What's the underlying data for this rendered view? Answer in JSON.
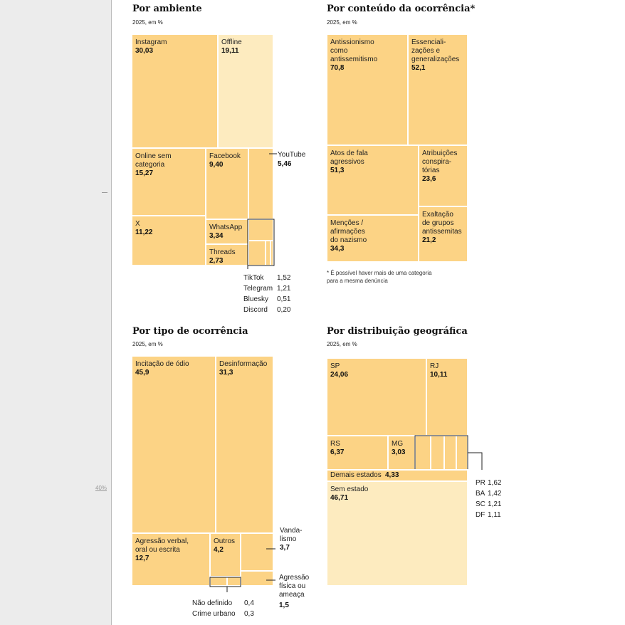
{
  "colors": {
    "main": "#fcd385",
    "light": "#fdebbf",
    "sidebar": "#ececec"
  },
  "sidebar": {
    "pct": "40%"
  },
  "chart_data": [
    {
      "type": "treemap",
      "title": "Por ambiente",
      "subtitle": "2025, em %",
      "items": [
        {
          "label": "Instagram",
          "value": "30,03",
          "lines": [
            "Instagram"
          ]
        },
        {
          "label": "Offline",
          "value": "19,11",
          "lines": [
            "Offline"
          ],
          "shade": "light"
        },
        {
          "label": "Online sem categoria",
          "value": "15,27",
          "lines": [
            "Online sem",
            "categoria"
          ]
        },
        {
          "label": "Facebook",
          "value": "9,40",
          "lines": [
            "Facebook"
          ]
        },
        {
          "label": "YouTube",
          "value": "5,46",
          "lines": [
            "YouTube"
          ]
        },
        {
          "label": "X",
          "value": "11,22",
          "lines": [
            "X"
          ]
        },
        {
          "label": "WhatsApp",
          "value": "3,34",
          "lines": [
            "WhatsApp"
          ]
        },
        {
          "label": "Threads",
          "value": "2,73",
          "lines": [
            "Threads"
          ]
        }
      ],
      "small_items": [
        {
          "label": "TikTok",
          "value": "1,52"
        },
        {
          "label": "Telegram",
          "value": "1,21"
        },
        {
          "label": "Bluesky",
          "value": "0,51"
        },
        {
          "label": "Discord",
          "value": "0,20"
        }
      ]
    },
    {
      "type": "treemap",
      "title": "Por conteúdo da ocorrência*",
      "subtitle": "2025, em %",
      "note": "* É possível haver mais de uma categoria para a mesma denúncia",
      "items": [
        {
          "label": "Antissionismo como antissemitismo",
          "value": "70,8",
          "lines": [
            "Antissionismo",
            "como",
            "antissemitismo"
          ]
        },
        {
          "label": "Essencializações e generalizações",
          "value": "52,1",
          "lines": [
            "Essenciali-",
            "zações e",
            "generalizações"
          ]
        },
        {
          "label": "Atos de fala agressivos",
          "value": "51,3",
          "lines": [
            "Atos de fala",
            "agressivos"
          ]
        },
        {
          "label": "Atribuições conspiratórias",
          "value": "23,6",
          "lines": [
            "Atribuições",
            "conspira-",
            "tórias"
          ]
        },
        {
          "label": "Exaltação de grupos antissemitas",
          "value": "21,2",
          "lines": [
            "Exaltação",
            "de grupos",
            "antissemitas"
          ]
        },
        {
          "label": "Menções / afirmações do nazismo",
          "value": "34,3",
          "lines": [
            "Menções /",
            "afirmações",
            "do nazismo"
          ]
        }
      ]
    },
    {
      "type": "treemap",
      "title": "Por tipo de ocorrência",
      "subtitle": "2025, em %",
      "items": [
        {
          "label": "Incitação de ódio",
          "value": "45,9",
          "lines": [
            "Incitação de ódio"
          ]
        },
        {
          "label": "Desinformação",
          "value": "31,3",
          "lines": [
            "Desinformação"
          ]
        },
        {
          "label": "Agressão verbal, oral ou escrita",
          "value": "12,7",
          "lines": [
            "Agressão verbal,",
            "oral ou escrita"
          ]
        },
        {
          "label": "Outros",
          "value": "4,2",
          "lines": [
            "Outros"
          ]
        },
        {
          "label": "Vandalismo",
          "value": "3,7",
          "lines": [
            "Vanda-",
            "lismo"
          ]
        },
        {
          "label": "Agressão física ou ameaça",
          "value": "1,5",
          "lines": [
            "Agressão",
            "física ou",
            "ameaça"
          ]
        }
      ],
      "small_items": [
        {
          "label": "Não definido",
          "value": "0,4"
        },
        {
          "label": "Crime urbano",
          "value": "0,3"
        }
      ]
    },
    {
      "type": "treemap",
      "title": "Por distribuição geográfica",
      "subtitle": "2025, em %",
      "items": [
        {
          "label": "SP",
          "value": "24,06",
          "lines": [
            "SP"
          ]
        },
        {
          "label": "RJ",
          "value": "10,11",
          "lines": [
            "RJ"
          ]
        },
        {
          "label": "RS",
          "value": "6,37",
          "lines": [
            "RS"
          ]
        },
        {
          "label": "MG",
          "value": "3,03",
          "lines": [
            "MG"
          ]
        },
        {
          "label": "Demais estados",
          "value": "4,33",
          "lines": [
            "Demais estados"
          ]
        },
        {
          "label": "Sem estado",
          "value": "46,71",
          "lines": [
            "Sem estado"
          ],
          "shade": "light"
        }
      ],
      "small_items": [
        {
          "label": "PR",
          "value": "1,62"
        },
        {
          "label": "BA",
          "value": "1,42"
        },
        {
          "label": "SC",
          "value": "1,21"
        },
        {
          "label": "DF",
          "value": "1,11"
        }
      ]
    }
  ]
}
